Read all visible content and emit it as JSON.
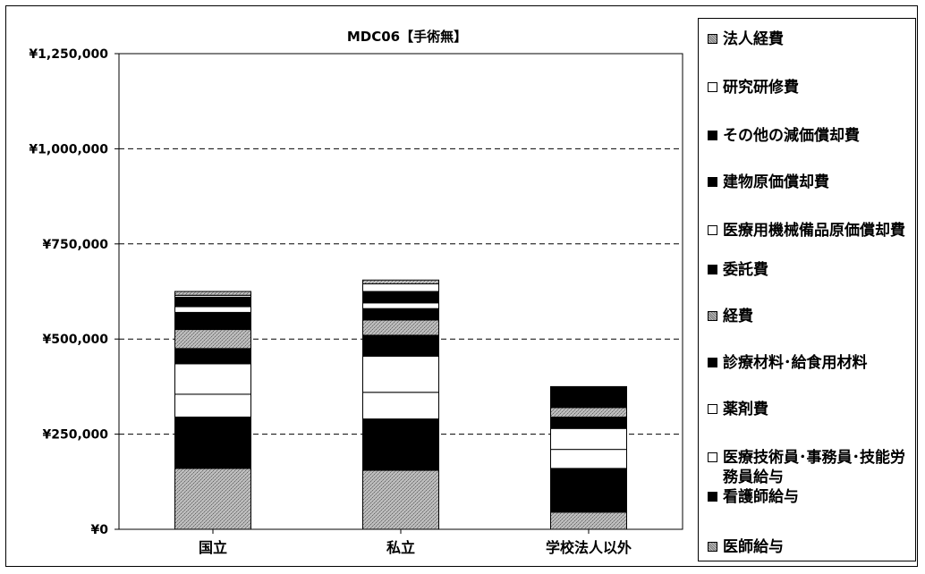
{
  "chart_data": {
    "type": "stacked-bar",
    "title": "MDC06【手術無】",
    "categories": [
      "国立",
      "私立",
      "学校法人以外"
    ],
    "y_ticks": [
      "¥0",
      "¥250,000",
      "¥500,000",
      "¥750,000",
      "¥1,000,000",
      "¥1,250,000"
    ],
    "ylim": [
      0,
      1250000
    ],
    "grid": "dashed horizontal",
    "legend_position": "right",
    "series": [
      {
        "name": "医師給与",
        "pattern": "gray",
        "values": [
          160000,
          155000,
          45000
        ]
      },
      {
        "name": "看護師給与",
        "pattern": "black",
        "values": [
          135000,
          135000,
          115000
        ]
      },
      {
        "name": "医療技術員･事務員･技能労務員給与",
        "pattern": "white",
        "values": [
          60000,
          70000,
          50000
        ]
      },
      {
        "name": "薬剤費",
        "pattern": "white",
        "values": [
          80000,
          95000,
          55000
        ]
      },
      {
        "name": "診療材料･給食用材料",
        "pattern": "black",
        "values": [
          40000,
          55000,
          30000
        ]
      },
      {
        "name": "経費",
        "pattern": "gray",
        "values": [
          50000,
          40000,
          25000
        ]
      },
      {
        "name": "委託費",
        "pattern": "black",
        "values": [
          45000,
          30000,
          55000
        ]
      },
      {
        "name": "医療用機械備品原価償却費",
        "pattern": "white",
        "values": [
          15000,
          15000,
          0
        ]
      },
      {
        "name": "建物原価償却費",
        "pattern": "black",
        "values": [
          15000,
          15000,
          0
        ]
      },
      {
        "name": "その他の減価償却費",
        "pattern": "black",
        "values": [
          10000,
          15000,
          0
        ]
      },
      {
        "name": "研究研修費",
        "pattern": "white",
        "values": [
          5000,
          20000,
          0
        ]
      },
      {
        "name": "法人経費",
        "pattern": "gray",
        "values": [
          10000,
          10000,
          0
        ]
      }
    ]
  },
  "legend": {
    "items": [
      {
        "label": "法人経費",
        "pattern": "gray"
      },
      {
        "label": "研究研修費",
        "pattern": "white"
      },
      {
        "label": "その他の減価償却費",
        "pattern": "black"
      },
      {
        "label": "建物原価償却費",
        "pattern": "black"
      },
      {
        "label": "医療用機械備品原価償却費",
        "pattern": "white"
      },
      {
        "label": "委託費",
        "pattern": "black"
      },
      {
        "label": "経費",
        "pattern": "gray"
      },
      {
        "label": "診療材料･給食用材料",
        "pattern": "black"
      },
      {
        "label": "薬剤費",
        "pattern": "white"
      },
      {
        "label": "医療技術員･事務員･技能労務員給与",
        "pattern": "white"
      },
      {
        "label": "看護師給与",
        "pattern": "black"
      },
      {
        "label": "医師給与",
        "pattern": "gray"
      }
    ]
  }
}
